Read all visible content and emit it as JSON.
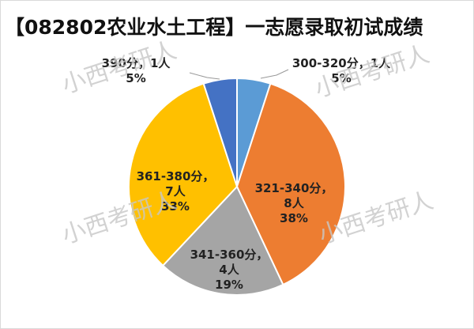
{
  "chart_data": {
    "type": "pie",
    "title": "【082802农业水土工程】一志愿录取初试成绩",
    "categories": [
      "300-320分",
      "321-340分",
      "341-360分",
      "361-380分",
      "390分"
    ],
    "values": [
      5,
      38,
      19,
      33,
      5
    ],
    "value_labels": [
      "5%",
      "38%",
      "19%",
      "33%",
      "5%"
    ],
    "counts": [
      1,
      8,
      4,
      7,
      1
    ],
    "count_labels": [
      "1人",
      "8人",
      "4人",
      "7人",
      "1人"
    ],
    "label_separator": "，",
    "colors": [
      "#5b9bd5",
      "#ed7d31",
      "#a5a5a5",
      "#ffc000",
      "#4472c4"
    ],
    "watermark": "小西考研人"
  }
}
